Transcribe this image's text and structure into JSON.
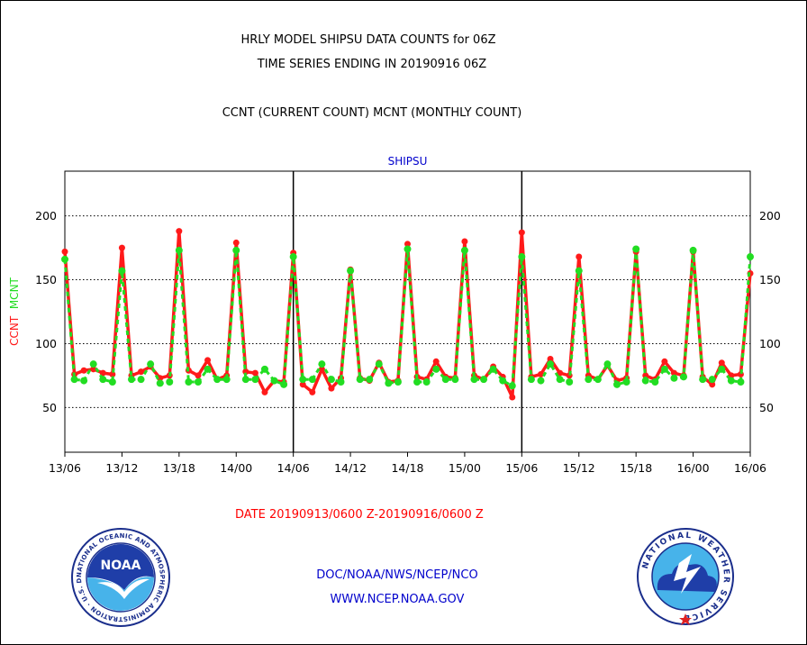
{
  "header": {
    "title_line1": "HRLY MODEL SHIPSU DATA COUNTS for 06Z",
    "title_line2": "TIME SERIES ENDING IN 20190916 06Z",
    "subtitle": "CCNT (CURRENT COUNT) MCNT (MONTHLY COUNT)"
  },
  "footer": {
    "date_range": "DATE 20190913/0600 Z-20190916/0600 Z",
    "org_line": "DOC/NOAA/NWS/NCEP/NCO",
    "url_line": "WWW.NCEP.NOAA.GOV"
  },
  "logos": {
    "noaa_text": "NOAA",
    "noaa_ring_text": "NATIONAL OCEANIC AND ATMOSPHERIC ADMINISTRATION · U.S. DEPARTMENT OF COMMERCE",
    "nws_ring_text": "NATIONAL WEATHER SERVICE"
  },
  "colors": {
    "ccnt": "#ff1a1a",
    "mcnt": "#22dd22",
    "title": "#000000",
    "date_text": "#ff0000",
    "org_text": "#0000cc",
    "plot_title": "#0000cc"
  },
  "chart_data": {
    "type": "line",
    "title": "SHIPSU",
    "ylabel_parts": [
      {
        "text": "CCNT",
        "color": "#ff1a1a"
      },
      {
        "text": "MCNT",
        "color": "#22dd22"
      }
    ],
    "x_ticks": [
      "13/06",
      "13/12",
      "13/18",
      "14/00",
      "14/06",
      "14/12",
      "14/18",
      "15/00",
      "15/06",
      "15/12",
      "15/18",
      "16/00",
      "16/06"
    ],
    "xlim": [
      0,
      72
    ],
    "ylim": [
      15,
      235
    ],
    "y_ticks": [
      50,
      100,
      150,
      200
    ],
    "grid": "dotted horizontal lines at y ticks; solid vertical day boundaries at 14/06 and 15/06",
    "x_unit": "hours after 20190913/06Z",
    "series": [
      {
        "name": "CCNT",
        "color": "#ff1a1a",
        "values": [
          172,
          76,
          79,
          80,
          77,
          76,
          175,
          75,
          78,
          82,
          73,
          75,
          188,
          79,
          75,
          87,
          72,
          75,
          179,
          78,
          77,
          62,
          71,
          70,
          171,
          68,
          62,
          80,
          65,
          73,
          158,
          73,
          71,
          85,
          70,
          71,
          178,
          74,
          72,
          86,
          74,
          73,
          180,
          75,
          72,
          82,
          74,
          58,
          187,
          74,
          76,
          88,
          77,
          75,
          168,
          75,
          72,
          83,
          71,
          73,
          172,
          75,
          72,
          86,
          77,
          75,
          172,
          74,
          68,
          85,
          75,
          76,
          155
        ]
      },
      {
        "name": "MCNT",
        "color": "#22dd22",
        "values": [
          166,
          72,
          71,
          84,
          72,
          70,
          157,
          72,
          72,
          84,
          69,
          70,
          173,
          70,
          70,
          80,
          72,
          72,
          173,
          72,
          72,
          80,
          71,
          68,
          168,
          72,
          72,
          84,
          72,
          70,
          157,
          72,
          72,
          84,
          69,
          70,
          174,
          70,
          70,
          80,
          72,
          72,
          173,
          72,
          72,
          80,
          71,
          67,
          168,
          72,
          71,
          84,
          72,
          70,
          157,
          72,
          72,
          84,
          68,
          70,
          174,
          71,
          70,
          80,
          73,
          74,
          173,
          72,
          72,
          80,
          71,
          70,
          168
        ]
      }
    ]
  }
}
